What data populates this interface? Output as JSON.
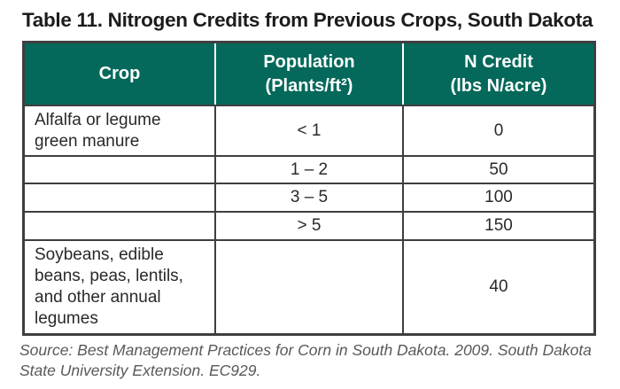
{
  "title": "Table 11. Nitrogen Credits from Previous Crops, South Dakota",
  "table": {
    "accent_color": "#04695a",
    "border_color": "#3f3e40",
    "columns": [
      {
        "line1": "Crop",
        "line2": ""
      },
      {
        "line1": "Population",
        "line2": "(Plants/ft²)"
      },
      {
        "line1": "N Credit",
        "line2": "(lbs N/acre)"
      }
    ],
    "rows": [
      {
        "crop": "Alfalfa or legume green manure",
        "population": "< 1",
        "n_credit": "0"
      },
      {
        "crop": "",
        "population": "1 – 2",
        "n_credit": "50"
      },
      {
        "crop": "",
        "population": "3 – 5",
        "n_credit": "100"
      },
      {
        "crop": "",
        "population": "> 5",
        "n_credit": "150"
      },
      {
        "crop": "Soybeans, edible beans, peas, lentils, and other annual legumes",
        "population": "",
        "n_credit": "40"
      }
    ]
  },
  "source_note": "Source: Best Management Practices for Corn in South Dakota. 2009. South Dakota State University Extension. EC929."
}
